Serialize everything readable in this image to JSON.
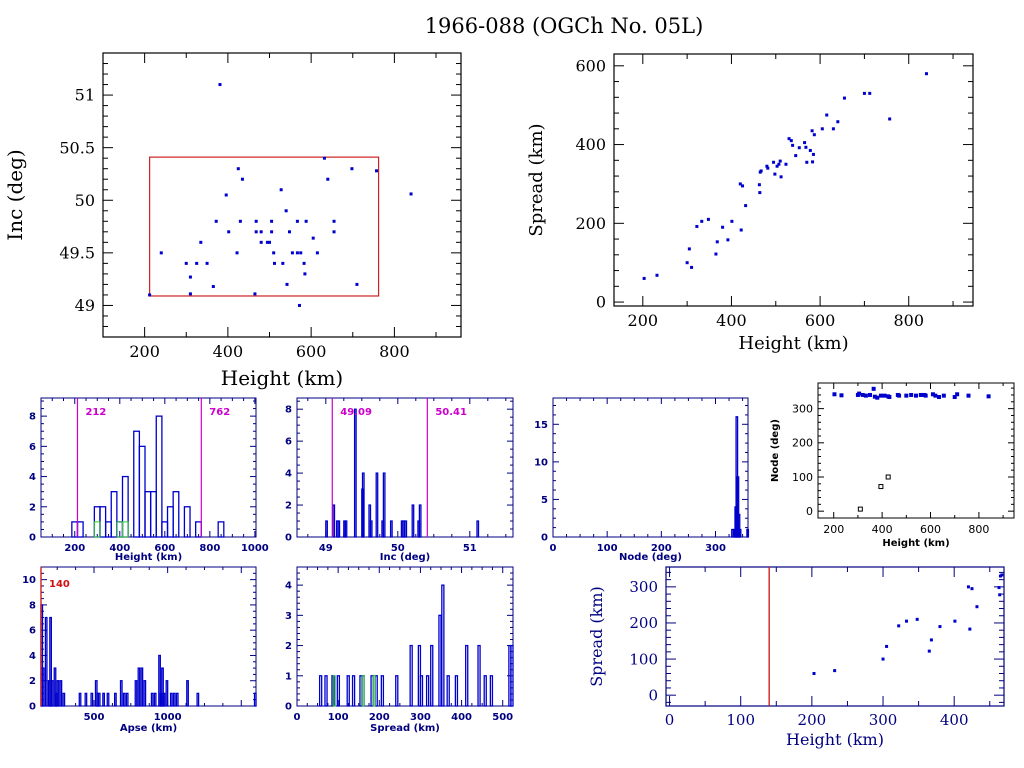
{
  "page": {
    "title": "1966-088 (OGCh No. 05L)"
  },
  "colors": {
    "axis_black": "#000000",
    "axis_blue": "#000080",
    "point": "#0000cc",
    "box": "#cc2222",
    "limit_line": "#cc00cc",
    "green": "#33cc33",
    "red_line": "#cc1111"
  },
  "chart_data": [
    {
      "id": "inc-vs-height",
      "type": "scatter",
      "title": "",
      "xlabel": "Height (km)",
      "ylabel": "Inc (deg)",
      "xlim": [
        100,
        960
      ],
      "ylim": [
        48.7,
        51.4
      ],
      "xticks": [
        200,
        400,
        600,
        800
      ],
      "yticks": [
        49,
        49.5,
        50,
        50.5,
        51
      ],
      "xtick_labels": [
        "200",
        "400",
        "600",
        "800"
      ],
      "ytick_labels": [
        "49",
        "49.5",
        "50",
        "50.5",
        "51"
      ],
      "box": {
        "x": [
          212,
          762
        ],
        "y": [
          49.09,
          50.41
        ]
      },
      "points": [
        [
          381,
          51.1
        ],
        [
          212,
          49.1
        ],
        [
          240,
          49.5
        ],
        [
          300,
          49.4
        ],
        [
          325,
          49.4
        ],
        [
          335,
          49.6
        ],
        [
          350,
          49.4
        ],
        [
          365,
          49.18
        ],
        [
          372,
          49.8
        ],
        [
          310,
          49.27
        ],
        [
          310,
          49.11
        ],
        [
          396,
          50.05
        ],
        [
          402,
          49.7
        ],
        [
          422,
          49.5
        ],
        [
          425,
          50.3
        ],
        [
          430,
          49.8
        ],
        [
          435,
          50.2
        ],
        [
          465,
          49.11
        ],
        [
          468,
          49.8
        ],
        [
          468,
          49.7
        ],
        [
          480,
          49.7
        ],
        [
          480,
          49.6
        ],
        [
          495,
          49.6
        ],
        [
          500,
          49.6
        ],
        [
          505,
          49.7
        ],
        [
          505,
          49.8
        ],
        [
          510,
          49.5
        ],
        [
          512,
          49.4
        ],
        [
          528,
          50.1
        ],
        [
          532,
          49.4
        ],
        [
          540,
          49.9
        ],
        [
          542,
          49.2
        ],
        [
          548,
          49.7
        ],
        [
          555,
          49.5
        ],
        [
          567,
          49.5
        ],
        [
          567,
          49.8
        ],
        [
          572,
          49.0
        ],
        [
          575,
          49.5
        ],
        [
          583,
          49.4
        ],
        [
          585,
          49.3
        ],
        [
          588,
          49.8
        ],
        [
          605,
          49.64
        ],
        [
          615,
          49.5
        ],
        [
          632,
          50.4
        ],
        [
          640,
          50.2
        ],
        [
          655,
          49.8
        ],
        [
          655,
          49.7
        ],
        [
          698,
          50.3
        ],
        [
          710,
          49.2
        ],
        [
          757,
          50.28
        ],
        [
          840,
          50.06
        ]
      ]
    },
    {
      "id": "spread-vs-height",
      "type": "scatter",
      "xlabel": "Height (km)",
      "ylabel": "Spread (km)",
      "xlim": [
        135,
        945
      ],
      "ylim": [
        -10,
        630
      ],
      "xticks": [
        200,
        400,
        600,
        800
      ],
      "yticks": [
        0,
        200,
        400,
        600
      ],
      "xtick_labels": [
        "200",
        "400",
        "600",
        "800"
      ],
      "ytick_labels": [
        "0",
        "200",
        "400",
        "600"
      ],
      "points": [
        [
          203,
          60
        ],
        [
          232,
          68
        ],
        [
          300,
          100
        ],
        [
          305,
          135
        ],
        [
          310,
          88
        ],
        [
          322,
          192
        ],
        [
          333,
          205
        ],
        [
          348,
          210
        ],
        [
          365,
          122
        ],
        [
          368,
          153
        ],
        [
          380,
          190
        ],
        [
          392,
          158
        ],
        [
          401,
          205
        ],
        [
          420,
          300
        ],
        [
          422,
          183
        ],
        [
          425,
          295
        ],
        [
          432,
          245
        ],
        [
          463,
          298
        ],
        [
          464,
          278
        ],
        [
          465,
          330
        ],
        [
          467,
          333
        ],
        [
          480,
          345
        ],
        [
          482,
          340
        ],
        [
          495,
          355
        ],
        [
          498,
          325
        ],
        [
          503,
          345
        ],
        [
          507,
          350
        ],
        [
          510,
          358
        ],
        [
          512,
          318
        ],
        [
          523,
          350
        ],
        [
          530,
          415
        ],
        [
          535,
          410
        ],
        [
          538,
          398
        ],
        [
          545,
          372
        ],
        [
          553,
          392
        ],
        [
          565,
          405
        ],
        [
          568,
          393
        ],
        [
          570,
          355
        ],
        [
          578,
          385
        ],
        [
          582,
          435
        ],
        [
          583,
          356
        ],
        [
          585,
          375
        ],
        [
          587,
          425
        ],
        [
          605,
          440
        ],
        [
          615,
          475
        ],
        [
          630,
          440
        ],
        [
          640,
          458
        ],
        [
          655,
          518
        ],
        [
          700,
          530
        ],
        [
          712,
          530
        ],
        [
          757,
          465
        ],
        [
          840,
          580
        ]
      ]
    },
    {
      "id": "height-histogram",
      "type": "bar",
      "xlabel": "Height (km)",
      "ylabel": "",
      "xlim": [
        50,
        1005
      ],
      "ylim": [
        0,
        9.2
      ],
      "xticks": [
        200,
        400,
        600,
        800,
        1000
      ],
      "yticks": [
        0,
        2,
        4,
        6,
        8
      ],
      "xtick_labels": [
        "200",
        "400",
        "600",
        "800",
        "1000"
      ],
      "ytick_labels": [
        "0",
        "2",
        "4",
        "6",
        "8"
      ],
      "bin_width": 25,
      "bins": [
        [
          187,
          1
        ],
        [
          212,
          1
        ],
        [
          287,
          2
        ],
        [
          312,
          2
        ],
        [
          337,
          1
        ],
        [
          362,
          3
        ],
        [
          387,
          1
        ],
        [
          412,
          4
        ],
        [
          462,
          7
        ],
        [
          487,
          6
        ],
        [
          512,
          3
        ],
        [
          537,
          3
        ],
        [
          562,
          8
        ],
        [
          587,
          1
        ],
        [
          612,
          2
        ],
        [
          637,
          3
        ],
        [
          687,
          2
        ],
        [
          737,
          1
        ],
        [
          837,
          1
        ]
      ],
      "green_bins": [
        [
          287,
          1
        ],
        [
          387,
          1
        ],
        [
          412,
          1
        ]
      ],
      "limits": [
        212,
        762
      ],
      "limit_labels": [
        "212",
        "762"
      ]
    },
    {
      "id": "inc-histogram",
      "type": "bar",
      "xlabel": "Inc (deg)",
      "ylabel": "",
      "xlim": [
        48.6,
        51.6
      ],
      "ylim": [
        0,
        8.7
      ],
      "xticks": [
        49,
        50,
        51
      ],
      "yticks": [
        0,
        2,
        4,
        6,
        8
      ],
      "xtick_labels": [
        "49",
        "50",
        "51"
      ],
      "ytick_labels": [
        "0",
        "2",
        "4",
        "6",
        "8"
      ],
      "bin_width": 0.01,
      "bins": [
        [
          49.0,
          1
        ],
        [
          49.1,
          2
        ],
        [
          49.15,
          1
        ],
        [
          49.17,
          1
        ],
        [
          49.25,
          1
        ],
        [
          49.27,
          1
        ],
        [
          49.4,
          8
        ],
        [
          49.5,
          3
        ],
        [
          49.51,
          4
        ],
        [
          49.6,
          2
        ],
        [
          49.62,
          1
        ],
        [
          49.7,
          4
        ],
        [
          49.78,
          1
        ],
        [
          49.8,
          4
        ],
        [
          49.9,
          1
        ],
        [
          50.05,
          1
        ],
        [
          50.07,
          1
        ],
        [
          50.1,
          1
        ],
        [
          50.2,
          2
        ],
        [
          50.28,
          1
        ],
        [
          50.3,
          2
        ],
        [
          51.1,
          1
        ]
      ],
      "limits": [
        49.09,
        50.41
      ],
      "limit_labels": [
        "49.09",
        "50.41"
      ]
    },
    {
      "id": "node-histogram",
      "type": "bar",
      "xlabel": "Node (deg)",
      "ylabel": "",
      "xlim": [
        0,
        360
      ],
      "ylim": [
        0,
        18.5
      ],
      "xticks": [
        0,
        100,
        200,
        300
      ],
      "yticks": [
        0,
        5,
        10,
        15
      ],
      "xtick_labels": [
        "0",
        "100",
        "200",
        "300"
      ],
      "ytick_labels": [
        "0",
        "5",
        "10",
        "15"
      ],
      "bin_width": 2,
      "bins": [
        [
          330,
          1
        ],
        [
          334,
          1
        ],
        [
          336,
          4
        ],
        [
          338,
          16
        ],
        [
          340,
          8
        ],
        [
          342,
          3
        ],
        [
          344,
          1
        ],
        [
          358,
          1
        ]
      ]
    },
    {
      "id": "node-vs-height",
      "type": "scatter",
      "xlabel": "Height (km)",
      "ylabel": "Node (deg)",
      "xlim": [
        135,
        945
      ],
      "ylim": [
        -20,
        375
      ],
      "xticks": [
        200,
        400,
        600,
        800
      ],
      "yticks": [
        0,
        100,
        200,
        300
      ],
      "xtick_labels": [
        "200",
        "400",
        "600",
        "800"
      ],
      "ytick_labels": [
        "0",
        "100",
        "200",
        "300"
      ],
      "points": [
        [
          203,
          342
        ],
        [
          232,
          339
        ],
        [
          300,
          340
        ],
        [
          305,
          344
        ],
        [
          320,
          340
        ],
        [
          333,
          338
        ],
        [
          350,
          340
        ],
        [
          365,
          358
        ],
        [
          370,
          335
        ],
        [
          380,
          332
        ],
        [
          395,
          338
        ],
        [
          410,
          338
        ],
        [
          425,
          336
        ],
        [
          430,
          334
        ],
        [
          465,
          340
        ],
        [
          470,
          338
        ],
        [
          500,
          338
        ],
        [
          520,
          340
        ],
        [
          540,
          338
        ],
        [
          560,
          340
        ],
        [
          575,
          340
        ],
        [
          580,
          338
        ],
        [
          610,
          342
        ],
        [
          620,
          338
        ],
        [
          635,
          334
        ],
        [
          655,
          338
        ],
        [
          700,
          334
        ],
        [
          710,
          342
        ],
        [
          757,
          338
        ],
        [
          840,
          336
        ]
      ],
      "black_points": [
        [
          310,
          6
        ],
        [
          395,
          72
        ],
        [
          425,
          100
        ]
      ]
    },
    {
      "id": "apse-histogram",
      "type": "bar",
      "xlabel": "Apse (km)",
      "ylabel": "",
      "xlim": [
        140,
        1600
      ],
      "ylim": [
        0,
        11
      ],
      "xticks": [
        500,
        1000
      ],
      "yticks": [
        0,
        2,
        4,
        6,
        8,
        10
      ],
      "xtick_labels": [
        "500",
        "1000"
      ],
      "ytick_labels": [
        "0",
        "2",
        "4",
        "6",
        "8",
        "10"
      ],
      "bin_width": 10,
      "bins": [
        [
          140,
          8
        ],
        [
          150,
          3
        ],
        [
          170,
          7
        ],
        [
          190,
          2
        ],
        [
          200,
          7
        ],
        [
          210,
          2
        ],
        [
          230,
          3
        ],
        [
          240,
          1
        ],
        [
          250,
          2
        ],
        [
          270,
          2
        ],
        [
          290,
          1
        ],
        [
          400,
          1
        ],
        [
          440,
          1
        ],
        [
          480,
          1
        ],
        [
          510,
          2
        ],
        [
          520,
          1
        ],
        [
          530,
          1
        ],
        [
          560,
          1
        ],
        [
          590,
          1
        ],
        [
          640,
          1
        ],
        [
          680,
          2
        ],
        [
          700,
          1
        ],
        [
          720,
          1
        ],
        [
          780,
          2
        ],
        [
          800,
          3
        ],
        [
          820,
          3
        ],
        [
          840,
          2
        ],
        [
          890,
          1
        ],
        [
          910,
          1
        ],
        [
          940,
          4
        ],
        [
          950,
          1
        ],
        [
          960,
          3
        ],
        [
          970,
          1
        ],
        [
          990,
          2
        ],
        [
          1020,
          1
        ],
        [
          1040,
          1
        ],
        [
          1060,
          1
        ],
        [
          1130,
          2
        ],
        [
          1200,
          1
        ],
        [
          1590,
          1
        ]
      ],
      "limit": 140,
      "limit_label": "140"
    },
    {
      "id": "spread-histogram",
      "type": "bar",
      "xlabel": "Spread (km)",
      "ylabel": "",
      "xlim": [
        0,
        525
      ],
      "ylim": [
        0,
        4.6
      ],
      "xticks": [
        0,
        100,
        200,
        300,
        400,
        500
      ],
      "yticks": [
        0,
        1,
        2,
        3,
        4
      ],
      "xtick_labels": [
        "0",
        "100",
        "200",
        "300",
        "400",
        "500"
      ],
      "ytick_labels": [
        "0",
        "1",
        "2",
        "3",
        "4"
      ],
      "bin_width": 5,
      "bins": [
        [
          55,
          1
        ],
        [
          68,
          1
        ],
        [
          85,
          1
        ],
        [
          98,
          1
        ],
        [
          122,
          1
        ],
        [
          135,
          1
        ],
        [
          153,
          1
        ],
        [
          158,
          1
        ],
        [
          180,
          1
        ],
        [
          190,
          1
        ],
        [
          205,
          1
        ],
        [
          240,
          1
        ],
        [
          275,
          2
        ],
        [
          295,
          2
        ],
        [
          300,
          1
        ],
        [
          315,
          1
        ],
        [
          325,
          2
        ],
        [
          345,
          3
        ],
        [
          352,
          4
        ],
        [
          365,
          1
        ],
        [
          385,
          1
        ],
        [
          410,
          2
        ],
        [
          440,
          2
        ],
        [
          455,
          1
        ],
        [
          470,
          1
        ],
        [
          515,
          2
        ],
        [
          520,
          2
        ]
      ],
      "green_bins": [
        [
          88,
          1
        ],
        [
          158,
          1
        ],
        [
          185,
          1
        ]
      ]
    },
    {
      "id": "spread-vs-height-zoom",
      "type": "scatter",
      "xlabel": "Height (km)",
      "ylabel": "Spread (km)",
      "xlim": [
        -5,
        470
      ],
      "ylim": [
        -30,
        355
      ],
      "xticks": [
        0,
        100,
        200,
        300,
        400
      ],
      "yticks": [
        0,
        100,
        200,
        300
      ],
      "xtick_labels": [
        "0",
        "100",
        "200",
        "300",
        "400"
      ],
      "ytick_labels": [
        "0",
        "100",
        "200",
        "300"
      ],
      "limit": 140,
      "points": [
        [
          203,
          60
        ],
        [
          232,
          68
        ],
        [
          300,
          100
        ],
        [
          305,
          135
        ],
        [
          322,
          192
        ],
        [
          333,
          205
        ],
        [
          348,
          210
        ],
        [
          365,
          122
        ],
        [
          368,
          153
        ],
        [
          380,
          190
        ],
        [
          401,
          205
        ],
        [
          420,
          300
        ],
        [
          422,
          183
        ],
        [
          425,
          295
        ],
        [
          432,
          245
        ],
        [
          463,
          298
        ],
        [
          464,
          278
        ],
        [
          465,
          330
        ],
        [
          467,
          333
        ]
      ]
    }
  ]
}
